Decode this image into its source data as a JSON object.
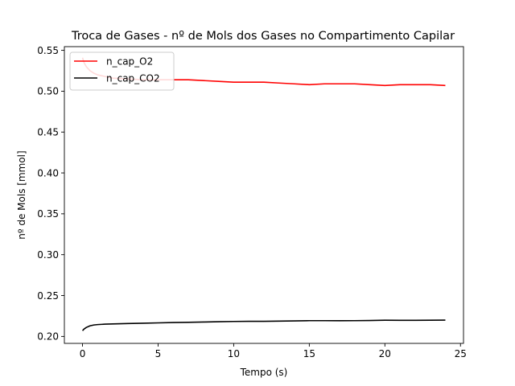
{
  "chart_data": {
    "type": "line",
    "title": "Troca de Gases - nº de Mols dos Gases no Compartimento Capilar",
    "xlabel": "Tempo (s)",
    "ylabel": "nº de Mols [mmol]",
    "xlim": [
      -1.2,
      25.2
    ],
    "ylim": [
      0.1915,
      0.5545
    ],
    "xticks": [
      0,
      5,
      10,
      15,
      20,
      25
    ],
    "yticks": [
      0.2,
      0.25,
      0.3,
      0.35,
      0.4,
      0.45,
      0.5,
      0.55
    ],
    "xtick_labels": [
      "0",
      "5",
      "10",
      "15",
      "20",
      "25"
    ],
    "ytick_labels": [
      "0.20",
      "0.25",
      "0.30",
      "0.35",
      "0.40",
      "0.45",
      "0.50",
      "0.55"
    ],
    "grid": false,
    "legend_position": "upper left",
    "series": [
      {
        "name": "n_cap_O2",
        "color": "#ff0000",
        "x": [
          0,
          0.1,
          0.25,
          0.5,
          0.75,
          1,
          1.5,
          2,
          3,
          4,
          5,
          6,
          7,
          8,
          9,
          10,
          11,
          12,
          13,
          14,
          15,
          16,
          17,
          18,
          19,
          20,
          21,
          22,
          23,
          24
        ],
        "y": [
          0.541,
          0.535,
          0.53,
          0.525,
          0.522,
          0.52,
          0.518,
          0.516,
          0.515,
          0.514,
          0.514,
          0.514,
          0.514,
          0.513,
          0.512,
          0.511,
          0.511,
          0.511,
          0.51,
          0.509,
          0.508,
          0.509,
          0.509,
          0.509,
          0.508,
          0.507,
          0.508,
          0.508,
          0.508,
          0.507
        ]
      },
      {
        "name": "n_cap_CO2",
        "color": "#000000",
        "x": [
          0,
          0.1,
          0.25,
          0.5,
          0.75,
          1,
          1.5,
          2,
          3,
          4,
          5,
          6,
          7,
          8,
          9,
          10,
          11,
          12,
          13,
          14,
          15,
          16,
          17,
          18,
          19,
          20,
          21,
          22,
          23,
          24
        ],
        "y": [
          0.207,
          0.209,
          0.211,
          0.213,
          0.214,
          0.2145,
          0.215,
          0.2153,
          0.2158,
          0.2162,
          0.2166,
          0.217,
          0.2173,
          0.2176,
          0.218,
          0.2183,
          0.2185,
          0.2185,
          0.2187,
          0.219,
          0.2193,
          0.2193,
          0.2192,
          0.2193,
          0.2195,
          0.2198,
          0.2197,
          0.2197,
          0.2198,
          0.22
        ]
      }
    ]
  }
}
